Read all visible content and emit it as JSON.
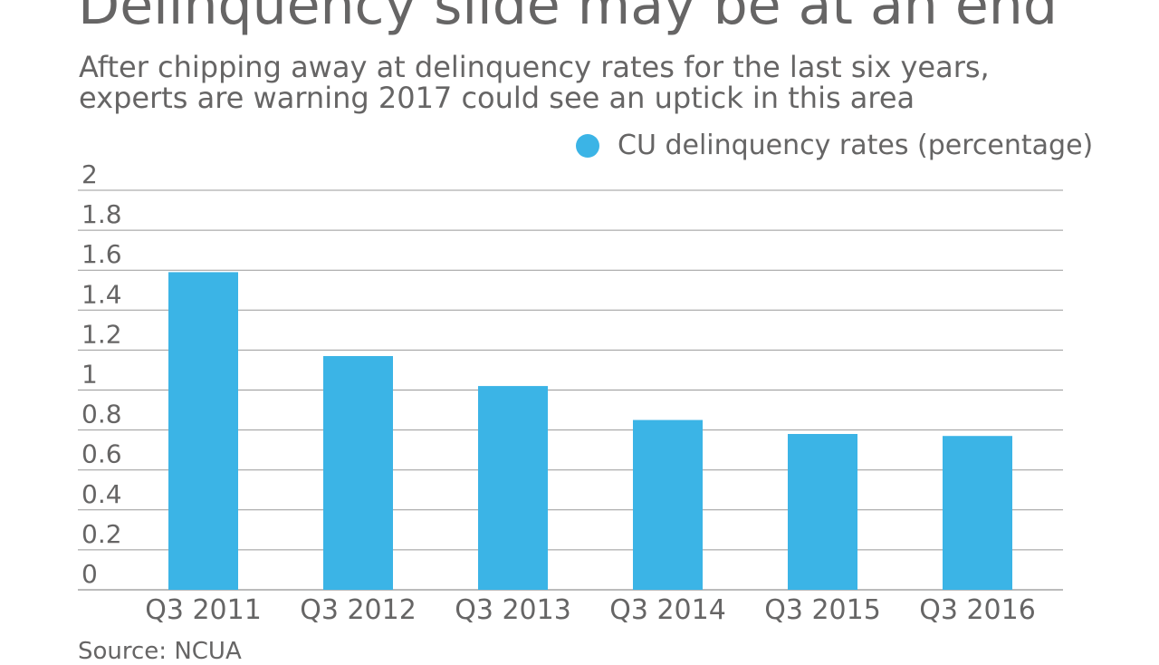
{
  "title": "Delinquency slide may be at an end",
  "subtitle_lines": [
    "After chipping away at delinquency rates for the last six years,",
    "experts are warning 2017 could see an uptick in this area"
  ],
  "source": "Source: NCUA",
  "chart_data": {
    "type": "bar",
    "categories": [
      "Q3 2011",
      "Q3 2012",
      "Q3 2013",
      "Q3 2014",
      "Q3 2015",
      "Q3 2016"
    ],
    "series": [
      {
        "name": "CU delinquency rates (percentage)",
        "values": [
          1.59,
          1.17,
          1.02,
          0.85,
          0.78,
          0.77
        ],
        "color": "#3bb4e6"
      }
    ],
    "yticks": [
      "0",
      "0.2",
      "0.4",
      "0.6",
      "0.8",
      "1",
      "1.2",
      "1.4",
      "1.6",
      "1.8",
      "2"
    ],
    "ylim": [
      0,
      2
    ],
    "grid": true,
    "legend": "top-right"
  }
}
